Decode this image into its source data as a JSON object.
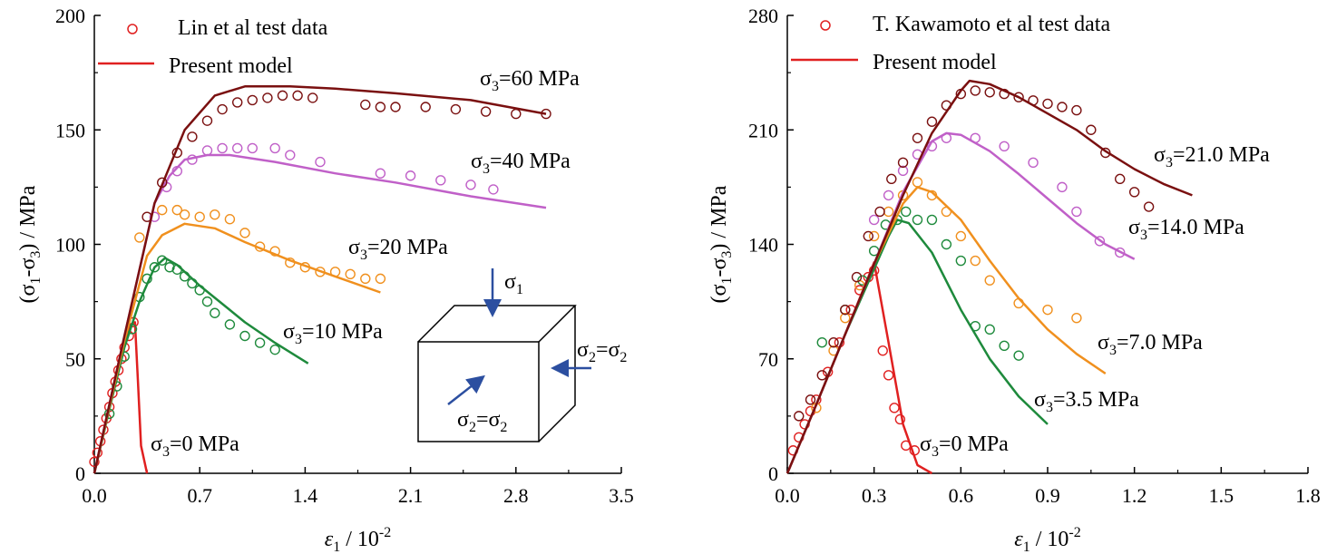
{
  "chart_data": [
    {
      "type": "line",
      "panel": "left",
      "xlabel": {
        "main": "ε",
        "sub": "1",
        "rest": " / 10",
        "sup": "-2"
      },
      "ylabel": {
        "a": "(σ",
        "b": "1",
        "c": "-σ",
        "d": "3",
        "e": ") / MPa"
      },
      "xlim": [
        0,
        3.5
      ],
      "ylim": [
        0,
        200
      ],
      "xticks": [
        0.0,
        0.7,
        1.4,
        2.1,
        2.8,
        3.5
      ],
      "xtick_labels": [
        "0.0",
        "0.7",
        "1.4",
        "2.1",
        "2.8",
        "3.5"
      ],
      "yticks": [
        0,
        50,
        100,
        150,
        200
      ],
      "ytick_labels": [
        "0",
        "50",
        "100",
        "150",
        "200"
      ],
      "legend": {
        "placement": "top-left",
        "data_label": "Lin et al test data",
        "model_label": "Present model"
      },
      "series": [
        {
          "name": "σ3=0 MPa",
          "label": {
            "a": "σ",
            "b": "3",
            "c": "=0 MPa"
          },
          "color": "#e02020",
          "model_x": [
            0.0,
            0.05,
            0.1,
            0.15,
            0.2,
            0.24,
            0.27,
            0.29,
            0.31,
            0.35
          ],
          "model_y": [
            0,
            15,
            30,
            45,
            58,
            65,
            66,
            40,
            12,
            0
          ],
          "data_x": [
            0.0,
            0.02,
            0.04,
            0.06,
            0.08,
            0.1,
            0.12,
            0.14,
            0.16,
            0.18,
            0.2,
            0.23,
            0.26
          ],
          "data_y": [
            5,
            9,
            14,
            19,
            24,
            29,
            35,
            40,
            45,
            50,
            55,
            60,
            66
          ]
        },
        {
          "name": "σ3=10 MPa",
          "label": {
            "a": "σ",
            "b": "3",
            "c": "=10 MPa"
          },
          "color": "#1e8a3c",
          "model_x": [
            0.0,
            0.1,
            0.2,
            0.3,
            0.4,
            0.47,
            0.55,
            0.7,
            0.85,
            1.0,
            1.2,
            1.42
          ],
          "model_y": [
            0,
            28,
            55,
            75,
            90,
            94,
            91,
            82,
            74,
            66,
            57,
            48
          ],
          "data_x": [
            0.1,
            0.15,
            0.2,
            0.25,
            0.3,
            0.35,
            0.4,
            0.45,
            0.5,
            0.55,
            0.6,
            0.65,
            0.7,
            0.75,
            0.8,
            0.9,
            1.0,
            1.1,
            1.2
          ],
          "data_y": [
            26,
            38,
            51,
            63,
            77,
            85,
            90,
            93,
            90,
            89,
            86,
            83,
            80,
            75,
            70,
            65,
            60,
            57,
            54
          ]
        },
        {
          "name": "σ3=20 MPa",
          "label": {
            "a": "σ",
            "b": "3",
            "c": "=20 MPa"
          },
          "color": "#f0901e",
          "model_x": [
            0.0,
            0.2,
            0.35,
            0.45,
            0.6,
            0.8,
            1.0,
            1.3,
            1.6,
            1.9
          ],
          "model_y": [
            0,
            58,
            95,
            104,
            109,
            107,
            101,
            93,
            86,
            79
          ],
          "data_x": [
            0.3,
            0.45,
            0.55,
            0.6,
            0.7,
            0.8,
            0.9,
            1.0,
            1.1,
            1.2,
            1.3,
            1.4,
            1.5,
            1.6,
            1.7,
            1.8,
            1.9
          ],
          "data_y": [
            103,
            115,
            115,
            113,
            112,
            113,
            111,
            105,
            99,
            97,
            92,
            90,
            88,
            88,
            87,
            85,
            85
          ]
        },
        {
          "name": "σ3=40 MPa",
          "label": {
            "a": "σ",
            "b": "3",
            "c": "=40 MPa"
          },
          "color": "#c060c8",
          "model_x": [
            0.0,
            0.2,
            0.4,
            0.5,
            0.6,
            0.75,
            0.9,
            1.2,
            1.6,
            2.0,
            2.5,
            3.0
          ],
          "model_y": [
            0,
            60,
            118,
            130,
            137,
            139,
            139,
            136,
            131,
            127,
            121,
            116
          ],
          "data_x": [
            0.4,
            0.48,
            0.55,
            0.65,
            0.75,
            0.85,
            0.95,
            1.05,
            1.2,
            1.3,
            1.5,
            1.9,
            2.1,
            2.3,
            2.5,
            2.65
          ],
          "data_y": [
            112,
            125,
            132,
            137,
            141,
            142,
            142,
            142,
            142,
            139,
            136,
            131,
            130,
            128,
            126,
            124
          ]
        },
        {
          "name": "σ3=60 MPa",
          "label": {
            "a": "σ",
            "b": "3",
            "c": "=60 MPa"
          },
          "color": "#7a1010",
          "model_x": [
            0.0,
            0.2,
            0.4,
            0.6,
            0.8,
            1.0,
            1.1,
            1.3,
            1.6,
            2.0,
            2.5,
            3.0
          ],
          "model_y": [
            0,
            60,
            118,
            150,
            165,
            169,
            169,
            169,
            168,
            166,
            163,
            157
          ],
          "data_x": [
            0.35,
            0.45,
            0.55,
            0.65,
            0.75,
            0.85,
            0.95,
            1.05,
            1.15,
            1.25,
            1.35,
            1.45,
            1.8,
            1.9,
            2.0,
            2.2,
            2.4,
            2.6,
            2.8,
            3.0
          ],
          "data_y": [
            112,
            127,
            140,
            147,
            154,
            159,
            162,
            163,
            164,
            165,
            165,
            164,
            161,
            160,
            160,
            160,
            159,
            158,
            157,
            157
          ]
        }
      ],
      "inset": {
        "top_label": {
          "a": "σ",
          "b": "1"
        },
        "right_label": {
          "a": "σ",
          "b": "2",
          "c": "=σ",
          "d": "2"
        },
        "front_label": {
          "a": "σ",
          "b": "2",
          "c": "=σ",
          "d": "2"
        }
      }
    },
    {
      "type": "line",
      "panel": "right",
      "xlabel": {
        "main": "ε",
        "sub": "1",
        "rest": " / 10",
        "sup": "-2"
      },
      "ylabel": {
        "a": "(σ",
        "b": "1",
        "c": "-σ",
        "d": "3",
        "e": ") / MPa"
      },
      "xlim": [
        0,
        1.8
      ],
      "ylim": [
        0,
        280
      ],
      "xticks": [
        0.0,
        0.3,
        0.6,
        0.9,
        1.2,
        1.5,
        1.8
      ],
      "xtick_labels": [
        "0.0",
        "0.3",
        "0.6",
        "0.9",
        "1.2",
        "1.5",
        "1.8"
      ],
      "yticks": [
        0,
        70,
        140,
        210,
        280
      ],
      "ytick_labels": [
        "0",
        "70",
        "140",
        "210",
        "280"
      ],
      "legend": {
        "placement": "top-left",
        "data_label": "T. Kawamoto et al test data",
        "model_label": "Present model"
      },
      "series": [
        {
          "name": "σ3=0 MPa",
          "label": {
            "a": "σ",
            "b": "3",
            "c": "=0 MPa"
          },
          "color": "#e02020",
          "model_x": [
            0.0,
            0.1,
            0.2,
            0.28,
            0.3,
            0.35,
            0.4,
            0.45,
            0.5
          ],
          "model_y": [
            0,
            42,
            85,
            120,
            129,
            80,
            30,
            5,
            0
          ],
          "data_x": [
            0.02,
            0.04,
            0.06,
            0.08,
            0.1,
            0.14,
            0.18,
            0.22,
            0.25,
            0.28,
            0.3,
            0.33,
            0.35,
            0.37,
            0.39,
            0.41,
            0.44
          ],
          "data_y": [
            14,
            22,
            30,
            38,
            45,
            62,
            80,
            100,
            112,
            120,
            124,
            75,
            60,
            40,
            33,
            17,
            14
          ]
        },
        {
          "name": "σ3=3.5 MPa",
          "label": {
            "a": "σ",
            "b": "3",
            "c": "=3.5 MPa"
          },
          "color": "#1e8a3c",
          "model_x": [
            0.0,
            0.1,
            0.2,
            0.3,
            0.35,
            0.38,
            0.42,
            0.5,
            0.6,
            0.7,
            0.8,
            0.9
          ],
          "model_y": [
            0,
            42,
            85,
            125,
            145,
            155,
            153,
            135,
            100,
            70,
            47,
            30
          ],
          "data_x": [
            0.12,
            0.2,
            0.26,
            0.3,
            0.34,
            0.38,
            0.41,
            0.45,
            0.5,
            0.55,
            0.6,
            0.65,
            0.7,
            0.75,
            0.8
          ],
          "data_y": [
            80,
            100,
            118,
            136,
            152,
            155,
            160,
            155,
            155,
            140,
            130,
            90,
            88,
            78,
            72
          ]
        },
        {
          "name": "σ3=7.0 MPa",
          "label": {
            "a": "σ",
            "b": "3",
            "c": "=7.0 MPa"
          },
          "color": "#f0901e",
          "model_x": [
            0.0,
            0.1,
            0.2,
            0.3,
            0.4,
            0.45,
            0.5,
            0.6,
            0.7,
            0.8,
            0.9,
            1.0,
            1.1
          ],
          "model_y": [
            0,
            42,
            85,
            128,
            165,
            175,
            172,
            155,
            130,
            107,
            88,
            73,
            61
          ],
          "data_x": [
            0.1,
            0.16,
            0.2,
            0.25,
            0.3,
            0.35,
            0.4,
            0.45,
            0.5,
            0.55,
            0.6,
            0.65,
            0.7,
            0.8,
            0.9,
            1.0
          ],
          "data_y": [
            40,
            75,
            95,
            115,
            145,
            160,
            170,
            178,
            170,
            160,
            145,
            130,
            118,
            104,
            100,
            95
          ]
        },
        {
          "name": "σ3=14.0 MPa",
          "label": {
            "a": "σ",
            "b": "3",
            "c": "=14.0 MPa"
          },
          "color": "#c060c8",
          "model_x": [
            0.0,
            0.1,
            0.2,
            0.3,
            0.4,
            0.5,
            0.55,
            0.6,
            0.7,
            0.8,
            0.9,
            1.0,
            1.1,
            1.2
          ],
          "model_y": [
            0,
            42,
            85,
            128,
            172,
            203,
            208,
            207,
            197,
            183,
            168,
            153,
            140,
            131
          ],
          "data_x": [
            0.3,
            0.35,
            0.4,
            0.45,
            0.5,
            0.55,
            0.65,
            0.75,
            0.85,
            0.95,
            1.0,
            1.08,
            1.15
          ],
          "data_y": [
            155,
            170,
            185,
            195,
            200,
            205,
            205,
            200,
            190,
            175,
            160,
            142,
            135
          ]
        },
        {
          "name": "σ3=21.0 MPa",
          "label": {
            "a": "σ",
            "b": "3",
            "c": "=21.0 MPa"
          },
          "color": "#7a1010",
          "model_x": [
            0.0,
            0.1,
            0.2,
            0.3,
            0.4,
            0.5,
            0.6,
            0.63,
            0.7,
            0.8,
            0.9,
            1.0,
            1.1,
            1.2,
            1.3,
            1.4
          ],
          "model_y": [
            0,
            42,
            85,
            128,
            170,
            208,
            234,
            240,
            238,
            230,
            220,
            210,
            197,
            186,
            177,
            170
          ],
          "data_x": [
            0.04,
            0.08,
            0.12,
            0.16,
            0.2,
            0.24,
            0.28,
            0.32,
            0.36,
            0.4,
            0.45,
            0.5,
            0.55,
            0.6,
            0.65,
            0.7,
            0.75,
            0.8,
            0.85,
            0.9,
            0.95,
            1.0,
            1.05,
            1.1,
            1.15,
            1.2,
            1.25
          ],
          "data_y": [
            35,
            45,
            60,
            80,
            100,
            120,
            145,
            160,
            180,
            190,
            205,
            215,
            225,
            232,
            234,
            233,
            232,
            230,
            228,
            226,
            224,
            222,
            210,
            196,
            180,
            172,
            163
          ]
        }
      ]
    }
  ]
}
